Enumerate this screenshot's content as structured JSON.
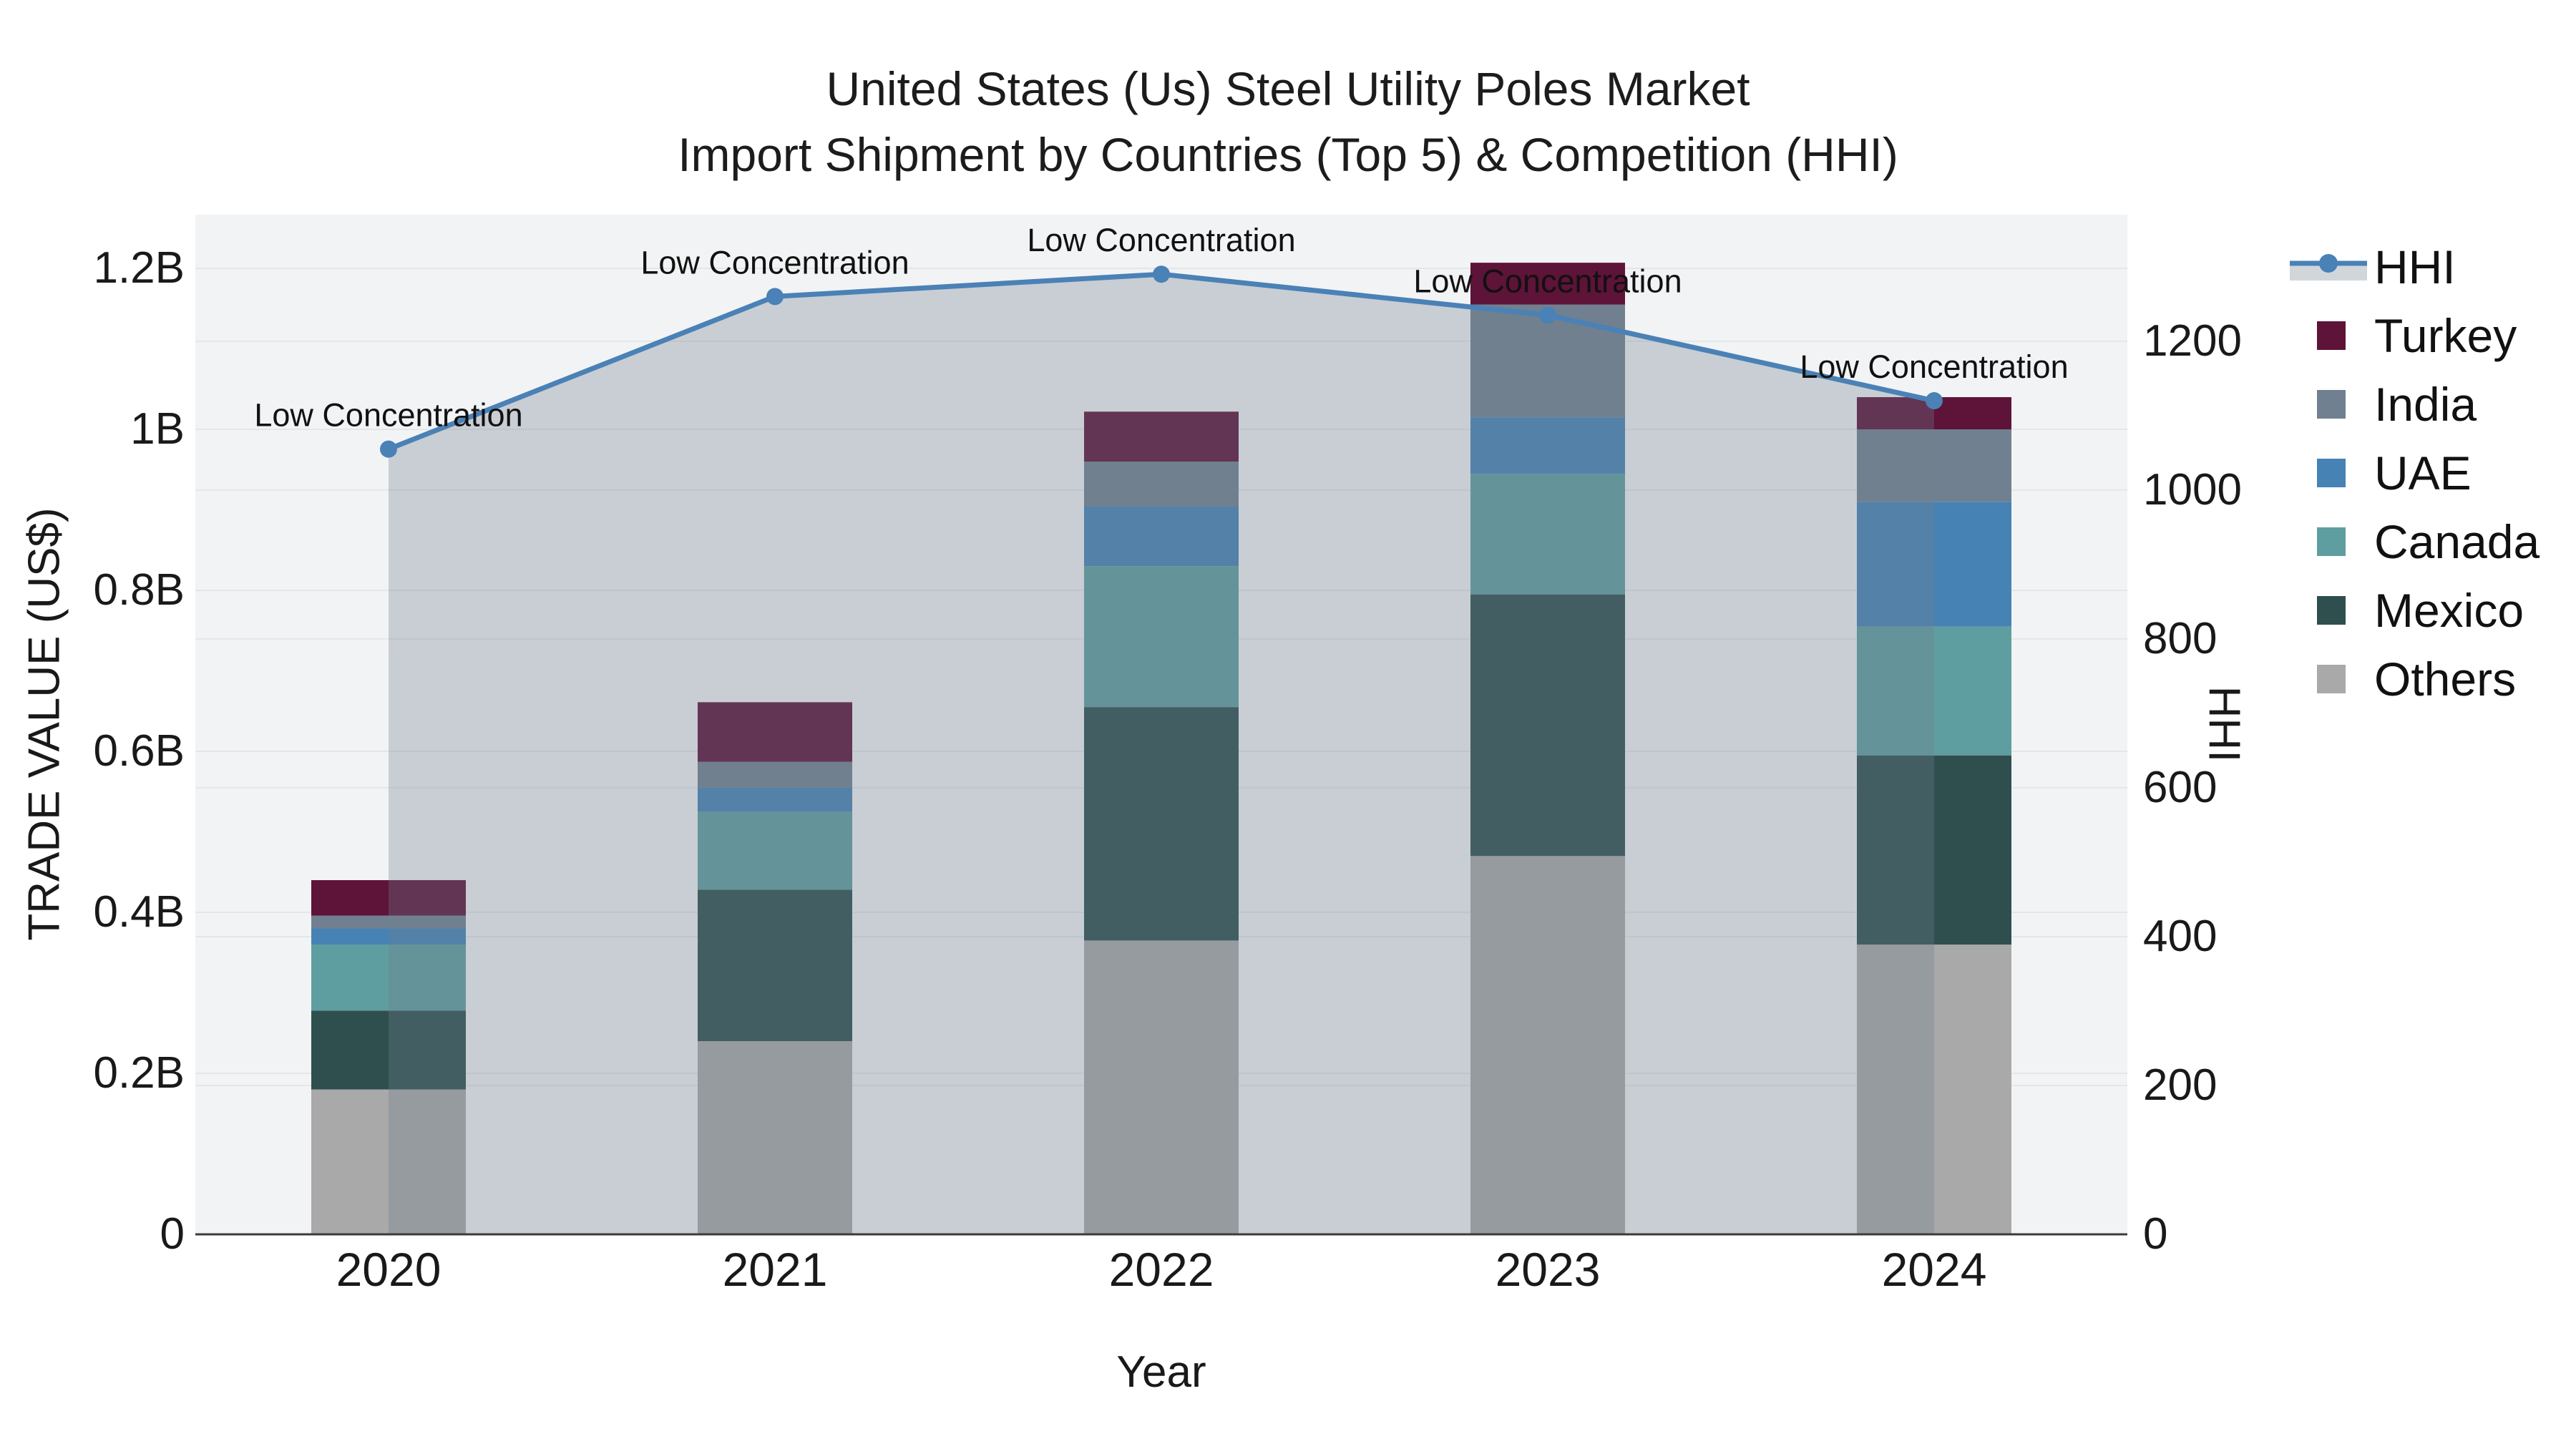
{
  "title": {
    "line1": "United States (Us) Steel Utility Poles Market",
    "line2": "Import Shipment by Countries (Top 5) & Competition (HHI)"
  },
  "axes": {
    "left": {
      "title": "TRADE VALUE (US$)",
      "tick_labels": [
        "0",
        "0.2B",
        "0.4B",
        "0.6B",
        "0.8B",
        "1B",
        "1.2B"
      ],
      "tick_values": [
        0,
        0.2,
        0.4,
        0.6,
        0.8,
        1.0,
        1.2
      ],
      "range": [
        0,
        1.2667
      ]
    },
    "right": {
      "title": "HHI",
      "tick_labels": [
        "0",
        "200",
        "400",
        "600",
        "800",
        "1000",
        "1200"
      ],
      "tick_values": [
        0,
        200,
        400,
        600,
        800,
        1000,
        1200
      ],
      "range": [
        0,
        1370
      ]
    },
    "x": {
      "title": "Year",
      "tick_labels": [
        "2020",
        "2021",
        "2022",
        "2023",
        "2024"
      ]
    }
  },
  "chart_data": {
    "type": "bar",
    "subtype": "stacked-bar-with-line",
    "categories": [
      2020,
      2021,
      2022,
      2023,
      2024
    ],
    "ylabel": "TRADE VALUE (US$)",
    "y2label": "HHI",
    "xlabel": "Year",
    "grid": true,
    "legend_position": "right",
    "series": [
      {
        "name": "Others",
        "color": "#a9a9a9",
        "values": [
          0.18,
          0.24,
          0.365,
          0.47,
          0.36
        ]
      },
      {
        "name": "Mexico",
        "color": "#2f4f4f",
        "values": [
          0.098,
          0.188,
          0.29,
          0.325,
          0.235
        ]
      },
      {
        "name": "Canada",
        "color": "#5f9ea0",
        "values": [
          0.082,
          0.097,
          0.175,
          0.15,
          0.16
        ]
      },
      {
        "name": "UAE",
        "color": "#4682b4",
        "values": [
          0.02,
          0.03,
          0.074,
          0.07,
          0.155
        ]
      },
      {
        "name": "India",
        "color": "#708090",
        "values": [
          0.016,
          0.032,
          0.056,
          0.14,
          0.09
        ]
      },
      {
        "name": "Turkey",
        "color": "#5e1338",
        "values": [
          0.044,
          0.074,
          0.062,
          0.052,
          0.04
        ]
      }
    ],
    "bar_totals": [
      0.44,
      0.661,
      1.022,
      1.207,
      1.04
    ],
    "line_series": {
      "name": "HHI",
      "axis": "right",
      "color": "#4a81b6",
      "area_fill": "rgba(112,128,144,0.32)",
      "values": [
        1055,
        1260,
        1290,
        1235,
        1120
      ],
      "point_annotation": "Low Concentration"
    },
    "legend_order": [
      "HHI",
      "Turkey",
      "India",
      "UAE",
      "Canada",
      "Mexico",
      "Others"
    ]
  },
  "style": {
    "plot_bg": "#f2f3f4",
    "gridline": "#e4e6e9",
    "axis_line": "#3b3b3b",
    "text": "#191919",
    "annotation_text": "#111111"
  }
}
